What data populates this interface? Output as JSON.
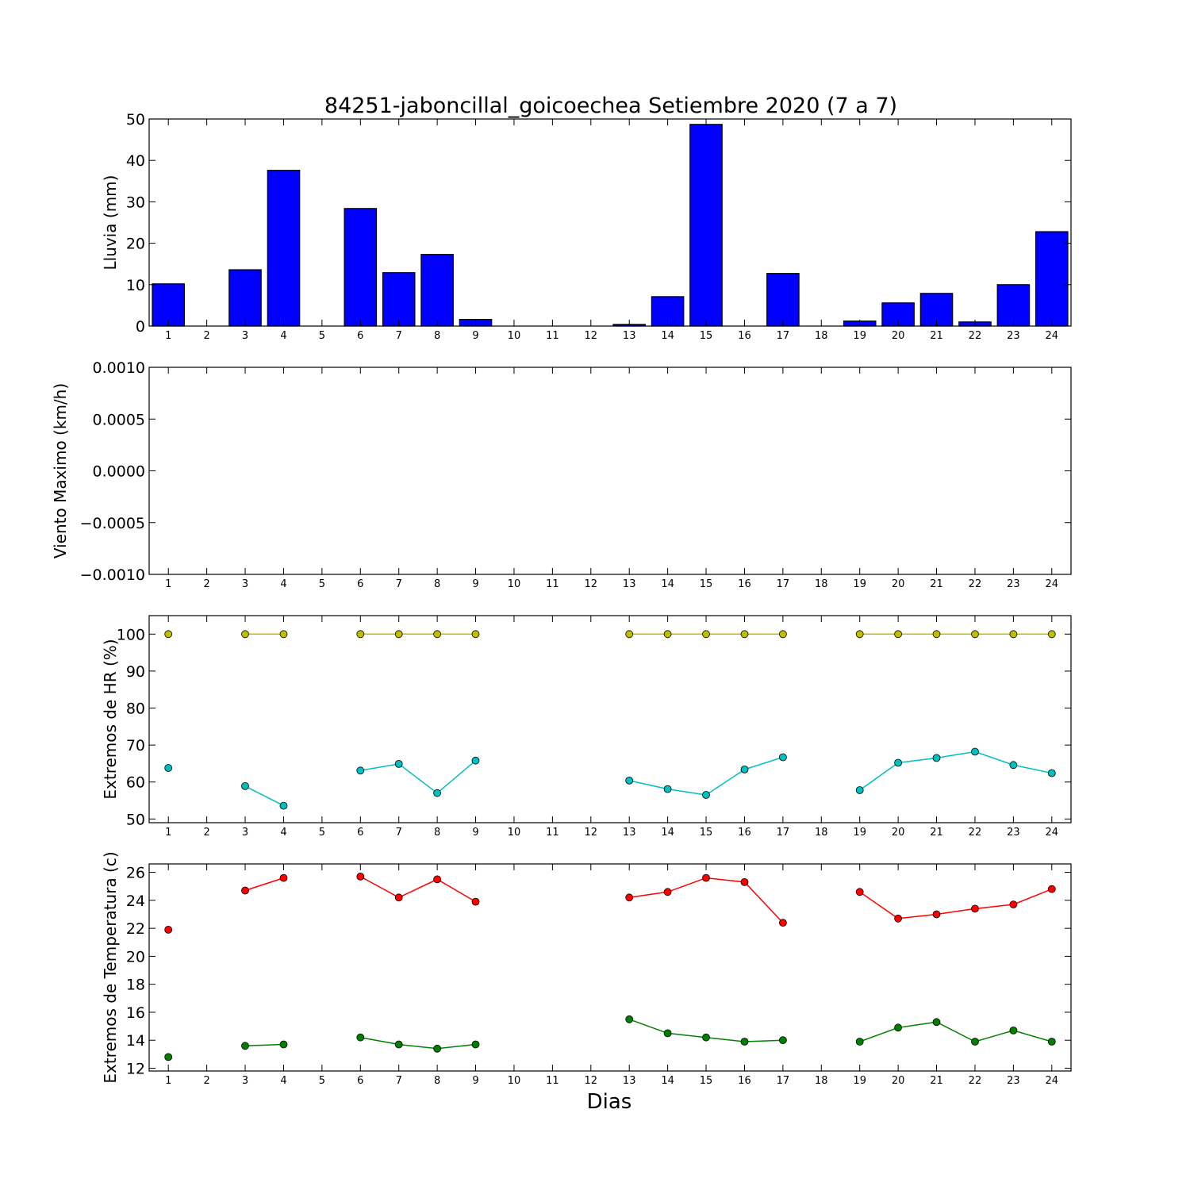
{
  "figure": {
    "title": "84251-jaboncillal_goicoechea Setiembre 2020  (7 a 7)",
    "xlabel": "Dias"
  },
  "chart_data": [
    {
      "type": "bar",
      "ylabel": "Lluvia (mm)",
      "ylim": [
        0,
        50
      ],
      "yticks": [
        0,
        10,
        20,
        30,
        40,
        50
      ],
      "ytick_labels": [
        "0",
        "10",
        "20",
        "30",
        "40",
        "50"
      ],
      "categories": [
        "1",
        "2",
        "3",
        "4",
        "5",
        "6",
        "7",
        "8",
        "9",
        "10",
        "11",
        "12",
        "13",
        "14",
        "15",
        "16",
        "17",
        "18",
        "19",
        "20",
        "21",
        "22",
        "23",
        "24"
      ],
      "values": [
        10.2,
        0,
        13.6,
        37.6,
        0,
        28.4,
        12.9,
        17.3,
        1.6,
        0,
        0,
        0,
        0.4,
        7.1,
        48.7,
        0,
        12.7,
        0,
        1.2,
        5.6,
        7.9,
        1.0,
        10.0,
        22.8
      ],
      "color": "#0000ff"
    },
    {
      "type": "line",
      "ylabel": "Viento Maximo (km/h)",
      "ylim": [
        -0.001,
        0.001
      ],
      "yticks": [
        -0.001,
        -0.0005,
        0,
        0.0005,
        0.001
      ],
      "ytick_labels": [
        "−0.0010",
        "−0.0005",
        "0.0000",
        "0.0005",
        "0.0010"
      ],
      "categories": [
        "1",
        "2",
        "3",
        "4",
        "5",
        "6",
        "7",
        "8",
        "9",
        "10",
        "11",
        "12",
        "13",
        "14",
        "15",
        "16",
        "17",
        "18",
        "19",
        "20",
        "21",
        "22",
        "23",
        "24"
      ],
      "series": []
    },
    {
      "type": "line",
      "ylabel": "Extremos de HR (%)",
      "ylim": [
        49,
        105
      ],
      "yticks": [
        50,
        60,
        70,
        80,
        90,
        100
      ],
      "ytick_labels": [
        "50",
        "60",
        "70",
        "80",
        "90",
        "100"
      ],
      "categories": [
        "1",
        "2",
        "3",
        "4",
        "5",
        "6",
        "7",
        "8",
        "9",
        "10",
        "11",
        "12",
        "13",
        "14",
        "15",
        "16",
        "17",
        "18",
        "19",
        "20",
        "21",
        "22",
        "23",
        "24"
      ],
      "series": [
        {
          "color": "#bfbf00",
          "values": [
            100,
            null,
            100,
            100,
            null,
            100,
            100,
            100,
            100,
            null,
            null,
            null,
            100,
            100,
            100,
            100,
            100,
            null,
            100,
            100,
            100,
            100,
            100,
            100
          ]
        },
        {
          "color": "#00bfbf",
          "values": [
            63.8,
            null,
            58.9,
            53.6,
            null,
            63.1,
            64.9,
            57.0,
            65.8,
            null,
            null,
            null,
            60.4,
            58.1,
            56.5,
            63.4,
            66.7,
            null,
            57.8,
            65.2,
            66.5,
            68.2,
            64.6,
            62.4
          ]
        }
      ]
    },
    {
      "type": "line",
      "ylabel": "Extremos de Temperatura (c)",
      "ylim": [
        11.8,
        26.6
      ],
      "yticks": [
        12,
        14,
        16,
        18,
        20,
        22,
        24,
        26
      ],
      "ytick_labels": [
        "12",
        "14",
        "16",
        "18",
        "20",
        "22",
        "24",
        "26"
      ],
      "categories": [
        "1",
        "2",
        "3",
        "4",
        "5",
        "6",
        "7",
        "8",
        "9",
        "10",
        "11",
        "12",
        "13",
        "14",
        "15",
        "16",
        "17",
        "18",
        "19",
        "20",
        "21",
        "22",
        "23",
        "24"
      ],
      "series": [
        {
          "color": "#ff0000",
          "values": [
            21.9,
            null,
            24.7,
            25.6,
            null,
            25.7,
            24.2,
            25.5,
            23.9,
            null,
            null,
            null,
            24.2,
            24.6,
            25.6,
            25.3,
            22.4,
            null,
            24.6,
            22.7,
            23.0,
            23.4,
            23.7,
            24.8
          ]
        },
        {
          "color": "#008000",
          "values": [
            12.8,
            null,
            13.6,
            13.7,
            null,
            14.2,
            13.7,
            13.4,
            13.7,
            null,
            null,
            null,
            15.5,
            14.5,
            14.2,
            13.9,
            14.0,
            null,
            13.9,
            14.9,
            15.3,
            13.9,
            14.7,
            13.9
          ]
        }
      ]
    }
  ]
}
